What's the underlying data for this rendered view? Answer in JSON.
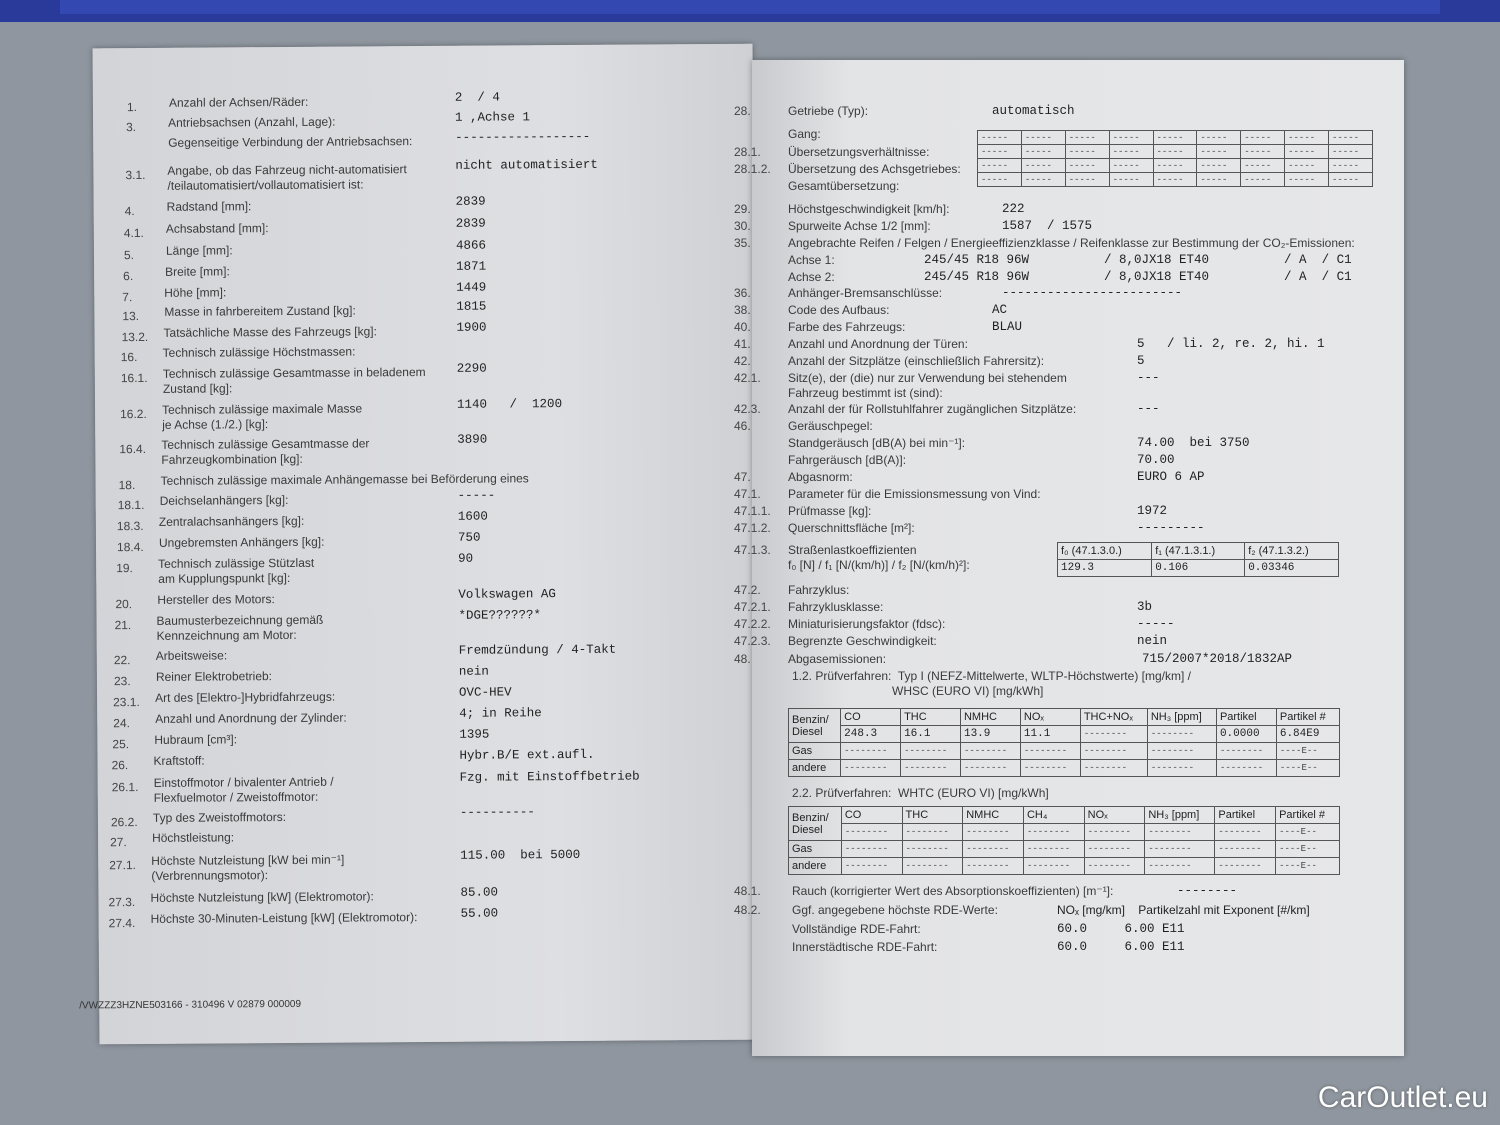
{
  "left_page": {
    "rows": [
      {
        "num": "1.",
        "label": "Anzahl der Achsen/Räder:",
        "value": "2  / 4"
      },
      {
        "num": "3.",
        "label": "Antriebsachsen (Anzahl, Lage):",
        "value": "1 ,Achse 1"
      },
      {
        "num": "",
        "label": "Gegenseitige Verbindung der Antriebsachsen:",
        "value": "------------------"
      },
      {
        "num": "3.1.",
        "label": "Angabe, ob das Fahrzeug nicht-automatisiert\n/teilautomatisiert/vollautomatisiert ist:",
        "value": "nicht automatisiert"
      },
      {
        "num": "4.",
        "label": "Radstand [mm]:",
        "value": "2839"
      },
      {
        "num": "4.1.",
        "label": "Achsabstand [mm]:",
        "value": "2839"
      },
      {
        "num": "5.",
        "label": "Länge [mm]:",
        "value": "4866"
      },
      {
        "num": "6.",
        "label": "Breite [mm]:",
        "value": "1871"
      },
      {
        "num": "7.",
        "label": "Höhe [mm]:",
        "value": "1449"
      },
      {
        "num": "13.",
        "label": "Masse in fahrbereitem Zustand [kg]:",
        "value": "1815"
      },
      {
        "num": "13.2.",
        "label": "Tatsächliche Masse des Fahrzeugs [kg]:",
        "value": "1900"
      },
      {
        "num": "16.",
        "label": "Technisch zulässige Höchstmassen:",
        "value": ""
      },
      {
        "num": "16.1.",
        "label": "Technisch zulässige Gesamtmasse in beladenem\nZustand [kg]:",
        "value": "2290"
      },
      {
        "num": "16.2.",
        "label": "Technisch zulässige maximale Masse\nje Achse (1./2.) [kg]:",
        "value": "1140   /  1200"
      },
      {
        "num": "16.4.",
        "label": "Technisch zulässige Gesamtmasse der\nFahrzeugkombination [kg]:",
        "value": "3890"
      },
      {
        "num": "18.",
        "label": "Technisch zulässige maximale Anhängemasse bei Beförderung eines",
        "value": ""
      },
      {
        "num": "18.1.",
        "label": "Deichselanhängers [kg]:",
        "value": "-----"
      },
      {
        "num": "18.3.",
        "label": "Zentralachsanhängers [kg]:",
        "value": "1600"
      },
      {
        "num": "18.4.",
        "label": "Ungebremsten Anhängers [kg]:",
        "value": "750"
      },
      {
        "num": "19.",
        "label": "Technisch zulässige Stützlast\nam Kupplungspunkt [kg]:",
        "value": "90"
      },
      {
        "num": "20.",
        "label": "Hersteller des Motors:",
        "value": "Volkswagen AG"
      },
      {
        "num": "21.",
        "label": "Baumusterbezeichnung gemäß\nKennzeichnung am Motor:",
        "value": "*DGE??????*"
      },
      {
        "num": "22.",
        "label": "Arbeitsweise:",
        "value": "Fremdzündung / 4-Takt"
      },
      {
        "num": "23.",
        "label": "Reiner Elektrobetrieb:",
        "value": "nein"
      },
      {
        "num": "23.1.",
        "label": "Art des [Elektro-]Hybridfahrzeugs:",
        "value": "OVC-HEV"
      },
      {
        "num": "24.",
        "label": "Anzahl und Anordnung der Zylinder:",
        "value": "4; in Reihe"
      },
      {
        "num": "25.",
        "label": "Hubraum [cm³]:",
        "value": "1395"
      },
      {
        "num": "26.",
        "label": "Kraftstoff:",
        "value": "Hybr.B/E ext.aufl."
      },
      {
        "num": "26.1.",
        "label": "Einstoffmotor / bivalenter Antrieb /\nFlexfuelmotor / Zweistoffmotor:",
        "value": "Fzg. mit Einstoffbetrieb"
      },
      {
        "num": "26.2.",
        "label": "Typ des Zweistoffmotors:",
        "value": "----------"
      },
      {
        "num": "27.",
        "label": "Höchstleistung:",
        "value": ""
      },
      {
        "num": "27.1.",
        "label": "Höchste Nutzleistung [kW bei min⁻¹]\n(Verbrennungsmotor):",
        "value": "115.00  bei 5000"
      },
      {
        "num": "27.3.",
        "label": "Höchste Nutzleistung [kW] (Elektromotor):",
        "value": "85.00"
      },
      {
        "num": "27.4.",
        "label": "Höchste 30-Minuten-Leistung [kW] (Elektromotor):",
        "value": "55.00"
      }
    ],
    "footer": "/VWZZZ3HZNE503166 - 310496 V 02879     000009"
  },
  "right_page": {
    "rows": [
      {
        "num": "28.",
        "label": "Getriebe (Typ):",
        "value": "automatisch"
      },
      {
        "num": "",
        "label": "Gang:",
        "value": ""
      },
      {
        "num": "28.1.",
        "label": "Übersetzungsverhältnisse:",
        "value": ""
      },
      {
        "num": "28.1.2.",
        "label": "Übersetzung des Achsgetriebes:",
        "value": ""
      },
      {
        "num": "",
        "label": "Gesamtübersetzung:",
        "value": ""
      },
      {
        "num": "29.",
        "label": "Höchstgeschwindigkeit [km/h]:",
        "value": "222"
      },
      {
        "num": "30.",
        "label": "Spurweite Achse 1/2 [mm]:",
        "value": "1587  / 1575"
      },
      {
        "num": "35.",
        "label": "Angebrachte Reifen / Felgen / Energieeffizienzklasse / Reifenklasse zur Bestimmung der CO₂-Emissionen:",
        "value": ""
      },
      {
        "num": "",
        "label": "Achse 1:",
        "value": "245/45 R18 96W          / 8,0JX18 ET40          / A  / C1"
      },
      {
        "num": "",
        "label": "Achse 2:",
        "value": "245/45 R18 96W          / 8,0JX18 ET40          / A  / C1"
      },
      {
        "num": "36.",
        "label": "Anhänger-Bremsanschlüsse:",
        "value": "------------------------"
      },
      {
        "num": "38.",
        "label": "Code des Aufbaus:",
        "value": "AC"
      },
      {
        "num": "40.",
        "label": "Farbe des Fahrzeugs:",
        "value": "BLAU"
      },
      {
        "num": "41.",
        "label": "Anzahl und Anordnung der Türen:",
        "value": "5   / li. 2, re. 2, hi. 1"
      },
      {
        "num": "42.",
        "label": "Anzahl der Sitzplätze (einschließlich Fahrersitz):",
        "value": "5"
      },
      {
        "num": "42.1.",
        "label": "Sitz(e), der (die) nur zur Verwendung bei stehendem\nFahrzeug bestimmt ist (sind):",
        "value": "---"
      },
      {
        "num": "42.3.",
        "label": "Anzahl der für Rollstuhlfahrer zugänglichen Sitzplätze:",
        "value": "---"
      },
      {
        "num": "46.",
        "label": "Geräuschpegel:",
        "value": ""
      },
      {
        "num": "",
        "label": "Standgeräusch [dB(A) bei min⁻¹]:",
        "value": "74.00  bei 3750"
      },
      {
        "num": "",
        "label": "Fahrgeräusch [dB(A)]:",
        "value": "70.00"
      },
      {
        "num": "47.",
        "label": "Abgasnorm:",
        "value": "EURO 6 AP"
      },
      {
        "num": "47.1.",
        "label": "Parameter für die Emissionsmessung von Vind:",
        "value": ""
      },
      {
        "num": "47.1.1.",
        "label": "Prüfmasse [kg]:",
        "value": "1972"
      },
      {
        "num": "47.1.2.",
        "label": "Querschnittsfläche [m²]:",
        "value": "---------"
      },
      {
        "num": "47.1.3.",
        "label": "Straßenlastkoeffizienten\nf₀ [N] / f₁ [N/(km/h)] / f₂ [N/(km/h)²]:",
        "value": ""
      },
      {
        "num": "47.2.",
        "label": "Fahrzyklus:",
        "value": ""
      },
      {
        "num": "47.2.1.",
        "label": "Fahrzyklusklasse:",
        "value": "3b"
      },
      {
        "num": "47.2.2.",
        "label": "Miniaturisierungsfaktor (fdsc):",
        "value": "-----"
      },
      {
        "num": "47.2.3.",
        "label": "Begrenzte Geschwindigkeit:",
        "value": "nein"
      },
      {
        "num": "48.",
        "label": "Abgasemissionen:",
        "value": "715/2007*2018/1832AP"
      },
      {
        "num": "",
        "label": "1.2. Prüfverfahren:  Typ I (NEFZ-Mittelwerte, WLTP-Höchstwerte) [mg/km] /\n                              WHSC (EURO VI) [mg/kWh]",
        "value": ""
      },
      {
        "num": "",
        "label": "2.2. Prüfverfahren:  WHTC (EURO VI) [mg/kWh]",
        "value": ""
      },
      {
        "num": "48.1.",
        "label": "Rauch (korrigierter Wert des Absorptionskoeffizienten) [m⁻¹]:",
        "value": "--------"
      },
      {
        "num": "48.2.",
        "label": "Ggf. angegebene höchste RDE-Werte:",
        "value": "NOₓ [mg/km]    Partikelzahl mit Exponent [#/km]"
      },
      {
        "num": "",
        "label": "Vollständige RDE-Fahrt:",
        "value": "60.0     6.00 E11"
      },
      {
        "num": "",
        "label": "Innerstädtische RDE-Fahrt:",
        "value": "60.0     6.00 E11"
      }
    ],
    "gear_table": {
      "rows": 4,
      "cols": 9,
      "cell": "-----"
    },
    "road_load_table": {
      "headers": [
        "f₀ (47.1.3.0.)",
        "f₁ (47.1.3.1.)",
        "f₂ (47.1.3.2.)"
      ],
      "values": [
        "129.3",
        "0.106",
        "0.03346"
      ]
    },
    "emissions_table_1": {
      "headers": [
        "CO",
        "THC",
        "NMHC",
        "NOₓ",
        "THC+NOₓ",
        "NH₃ [ppm]",
        "Partikel",
        "Partikel #"
      ],
      "rows": [
        {
          "label": "Benzin/\nDiesel",
          "cells": [
            "248.3",
            "16.1",
            "13.9",
            "11.1",
            "--------",
            "--------",
            "0.0000",
            "6.84E9"
          ]
        },
        {
          "label": "Gas",
          "cells": [
            "--------",
            "--------",
            "--------",
            "--------",
            "--------",
            "--------",
            "--------",
            "----E--"
          ]
        },
        {
          "label": "andere",
          "cells": [
            "--------",
            "--------",
            "--------",
            "--------",
            "--------",
            "--------",
            "--------",
            "----E--"
          ]
        }
      ]
    },
    "emissions_table_2": {
      "headers": [
        "CO",
        "THC",
        "NMHC",
        "CH₄",
        "NOₓ",
        "NH₃ [ppm]",
        "Partikel",
        "Partikel #"
      ],
      "rows": [
        {
          "label": "Benzin/\nDiesel",
          "cells": [
            "--------",
            "--------",
            "--------",
            "--------",
            "--------",
            "--------",
            "--------",
            "----E--"
          ]
        },
        {
          "label": "Gas",
          "cells": [
            "--------",
            "--------",
            "--------",
            "--------",
            "--------",
            "--------",
            "--------",
            "----E--"
          ]
        },
        {
          "label": "andere",
          "cells": [
            "--------",
            "--------",
            "--------",
            "--------",
            "--------",
            "--------",
            "--------",
            "----E--"
          ]
        }
      ]
    }
  },
  "watermark": "CarOutlet.eu"
}
